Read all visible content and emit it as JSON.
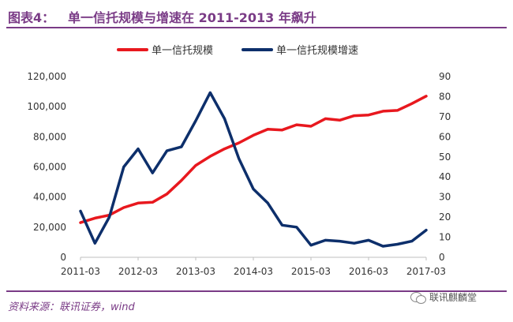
{
  "header": {
    "label": "图表4：",
    "title": "单一信托规模与增速在 2011-2013 年飙升"
  },
  "footer": {
    "source": "资料来源：联讯证券，wind",
    "watermark": "联讯麒麟堂"
  },
  "chart_data": {
    "type": "line",
    "x": [
      "2011-03",
      "2011-06",
      "2011-09",
      "2011-12",
      "2012-03",
      "2012-06",
      "2012-09",
      "2012-12",
      "2013-03",
      "2013-06",
      "2013-09",
      "2013-12",
      "2014-03",
      "2014-06",
      "2014-09",
      "2014-12",
      "2015-03",
      "2015-06",
      "2015-09",
      "2015-12",
      "2016-03",
      "2016-06",
      "2016-09",
      "2016-12",
      "2017-03"
    ],
    "x_tick_labels": [
      "2011-03",
      "2012-03",
      "2013-03",
      "2014-03",
      "2015-03",
      "2016-03",
      "2017-03"
    ],
    "series": [
      {
        "name": "单一信托规模",
        "axis": "left",
        "color": "#e8181e",
        "values": [
          23000,
          26000,
          28000,
          33000,
          36000,
          36500,
          42000,
          51000,
          61000,
          67000,
          72000,
          76000,
          81000,
          85000,
          84500,
          88000,
          87000,
          92000,
          91000,
          94000,
          94500,
          97000,
          97500,
          102000,
          107000
        ]
      },
      {
        "name": "单一信托规模增速",
        "axis": "right",
        "color": "#0d2f6b",
        "values": [
          23,
          7,
          20,
          45,
          54,
          42,
          53,
          55,
          68,
          82,
          69,
          49,
          34,
          27,
          16,
          15,
          6,
          8.5,
          8,
          7,
          8.5,
          5.5,
          6.5,
          8,
          13.5
        ]
      }
    ],
    "y_left": {
      "min": 0,
      "max": 120000,
      "ticks": [
        "0",
        "20,000",
        "40,000",
        "60,000",
        "80,000",
        "100,000",
        "120,000"
      ]
    },
    "y_right": {
      "min": 0,
      "max": 90,
      "ticks": [
        "0",
        "10",
        "20",
        "30",
        "40",
        "50",
        "60",
        "70",
        "80",
        "90"
      ]
    },
    "legend_position": "top-center",
    "grid": false
  }
}
